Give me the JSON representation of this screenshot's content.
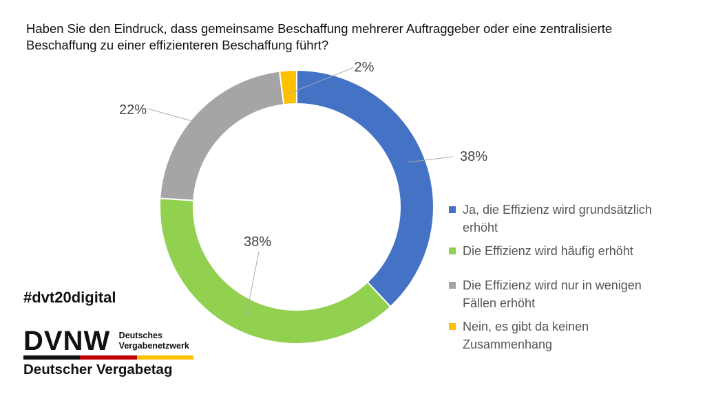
{
  "question": {
    "line1": "Haben Sie den Eindruck, dass gemeinsame Beschaffung mehrerer Auftraggeber oder eine zentralisierte",
    "line2": "Beschaffung zu einer effizienteren Beschaffung führt?"
  },
  "chart_data": {
    "type": "pie",
    "variant": "donut",
    "title": "Haben Sie den Eindruck, dass gemeinsame Beschaffung mehrerer Auftraggeber oder eine zentralisierte Beschaffung zu einer effizienteren Beschaffung führt?",
    "start": "top",
    "direction": "clockwise",
    "legend_position": "right",
    "categories": [
      "Ja, die Effizienz wird grundsätzlich erhöht",
      "Die Effizienz wird häufig erhöht",
      "Die Effizienz wird nur in wenigen Fällen erhöht",
      "Nein, es gibt da keinen Zusammenhang"
    ],
    "values": [
      38,
      38,
      22,
      2
    ],
    "labels": [
      "38%",
      "38%",
      "22%",
      "2%"
    ],
    "colors": [
      "#4472C4",
      "#92D050",
      "#A5A5A5",
      "#FFC000"
    ]
  },
  "legend": [
    {
      "line1": "Ja, die Effizienz wird grundsätzlich",
      "line2": "erhöht"
    },
    {
      "line1": "Die Effizienz wird häufig erhöht",
      "line2": ""
    },
    {
      "line1": "Die Effizienz wird nur in wenigen",
      "line2": "Fällen erhöht"
    },
    {
      "line1": "Nein, es gibt da keinen",
      "line2": "Zusammenhang"
    }
  ],
  "hashtag": "#dvt20digital",
  "logo": {
    "mark": "DVNW",
    "sub1": "Deutsches",
    "sub2": "Vergabenetzwerk",
    "bottom": "Deutscher Vergabetag",
    "bar_colors": [
      "#111111",
      "#C00000",
      "#FFC000"
    ]
  }
}
